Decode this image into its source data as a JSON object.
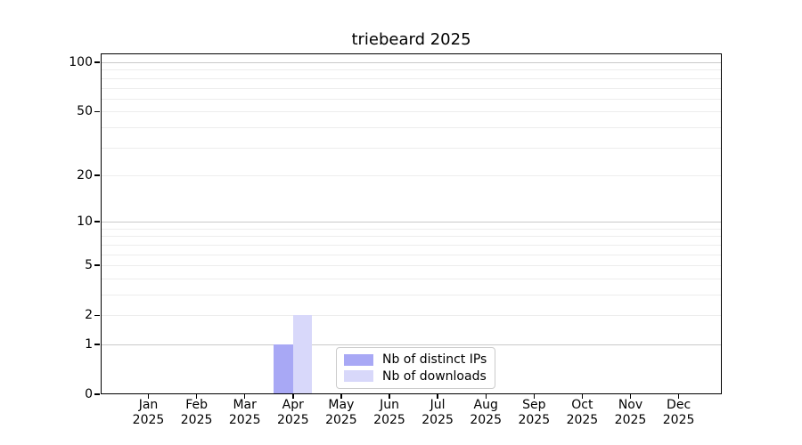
{
  "chart_data": {
    "type": "bar",
    "title": "triebeard 2025",
    "x": {
      "months": [
        "Jan",
        "Feb",
        "Mar",
        "Apr",
        "May",
        "Jun",
        "Jul",
        "Aug",
        "Sep",
        "Oct",
        "Nov",
        "Dec"
      ],
      "year": "2025"
    },
    "series": [
      {
        "name": "Nb of distinct IPs",
        "color": "#a8a8f5",
        "values": [
          0,
          0,
          0,
          1,
          0,
          0,
          0,
          0,
          0,
          0,
          0,
          0
        ]
      },
      {
        "name": "Nb of downloads",
        "color": "#d8d8fa",
        "values": [
          0,
          0,
          0,
          2,
          0,
          0,
          0,
          0,
          0,
          0,
          0,
          0
        ]
      }
    ],
    "y_axis": {
      "scale": "log1p",
      "tick_values": [
        0,
        1,
        2,
        5,
        10,
        20,
        50,
        100
      ],
      "major_gridlines": [
        1,
        10,
        100
      ],
      "minor_gridlines": [
        2,
        3,
        4,
        5,
        6,
        7,
        8,
        9,
        20,
        30,
        40,
        50,
        60,
        70,
        80,
        90
      ],
      "range": [
        0,
        113
      ]
    },
    "grid": "horizontal",
    "legend_position": "lower-center-inside"
  },
  "colors": {
    "background": "#ffffff",
    "axis": "#000000",
    "text": "#000000",
    "major_grid": "#c9c9c9",
    "minor_grid": "#ededed",
    "legend_border": "#cbcbcb"
  }
}
